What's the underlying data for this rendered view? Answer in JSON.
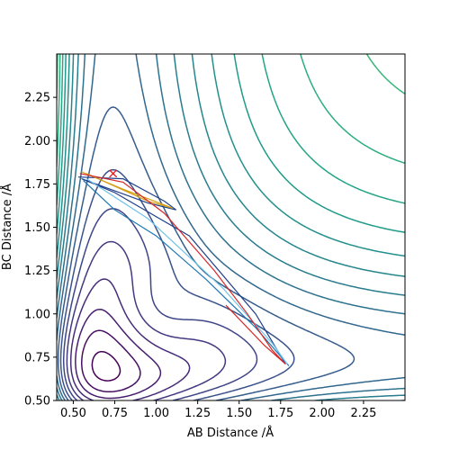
{
  "chart_data": {
    "type": "contour",
    "xlabel": "AB Distance /Å",
    "ylabel": "BC Distance /Å",
    "xlim": [
      0.4,
      2.5
    ],
    "ylim": [
      0.5,
      2.5
    ],
    "xticks": [
      "0.50",
      "0.75",
      "1.00",
      "1.25",
      "1.50",
      "1.75",
      "2.00",
      "2.25"
    ],
    "yticks": [
      "0.50",
      "0.75",
      "1.00",
      "1.25",
      "1.50",
      "1.75",
      "2.00",
      "2.25"
    ],
    "grid": false,
    "colormap": "viridis",
    "contour_levels": 25,
    "marker": {
      "symbol": "x",
      "color": "#e8141a",
      "x": 0.74,
      "y": 1.81
    },
    "trajectories": [
      {
        "color": "#1f3f8a",
        "points": [
          [
            0.53,
            1.79
          ],
          [
            0.8,
            1.78
          ],
          [
            1.05,
            1.65
          ],
          [
            1.12,
            1.6
          ],
          [
            0.95,
            1.64
          ],
          [
            0.55,
            1.78
          ],
          [
            0.75,
            1.7
          ],
          [
            1.2,
            1.45
          ],
          [
            1.6,
            1.0
          ],
          [
            1.78,
            0.71
          ]
        ]
      },
      {
        "color": "#1f77b4",
        "points": [
          [
            0.56,
            1.77
          ],
          [
            0.75,
            1.6
          ],
          [
            1.0,
            1.45
          ],
          [
            1.3,
            1.2
          ],
          [
            1.6,
            0.92
          ],
          [
            1.8,
            0.7
          ]
        ]
      },
      {
        "color": "#6fc3e8",
        "points": [
          [
            0.58,
            1.78
          ],
          [
            0.95,
            1.55
          ],
          [
            1.4,
            1.15
          ],
          [
            1.7,
            0.83
          ],
          [
            1.79,
            0.71
          ]
        ]
      },
      {
        "color": "#d4a017",
        "points": [
          [
            0.55,
            1.82
          ],
          [
            0.8,
            1.72
          ],
          [
            1.1,
            1.61
          ],
          [
            0.95,
            1.65
          ],
          [
            0.58,
            1.81
          ]
        ]
      },
      {
        "color": "#d62728",
        "points": [
          [
            0.54,
            1.81
          ],
          [
            0.8,
            1.76
          ],
          [
            1.05,
            1.58
          ],
          [
            1.35,
            1.25
          ],
          [
            1.55,
            1.0
          ],
          [
            1.7,
            0.79
          ],
          [
            1.78,
            0.71
          ],
          [
            1.65,
            0.82
          ],
          [
            1.42,
            1.05
          ]
        ]
      }
    ]
  }
}
